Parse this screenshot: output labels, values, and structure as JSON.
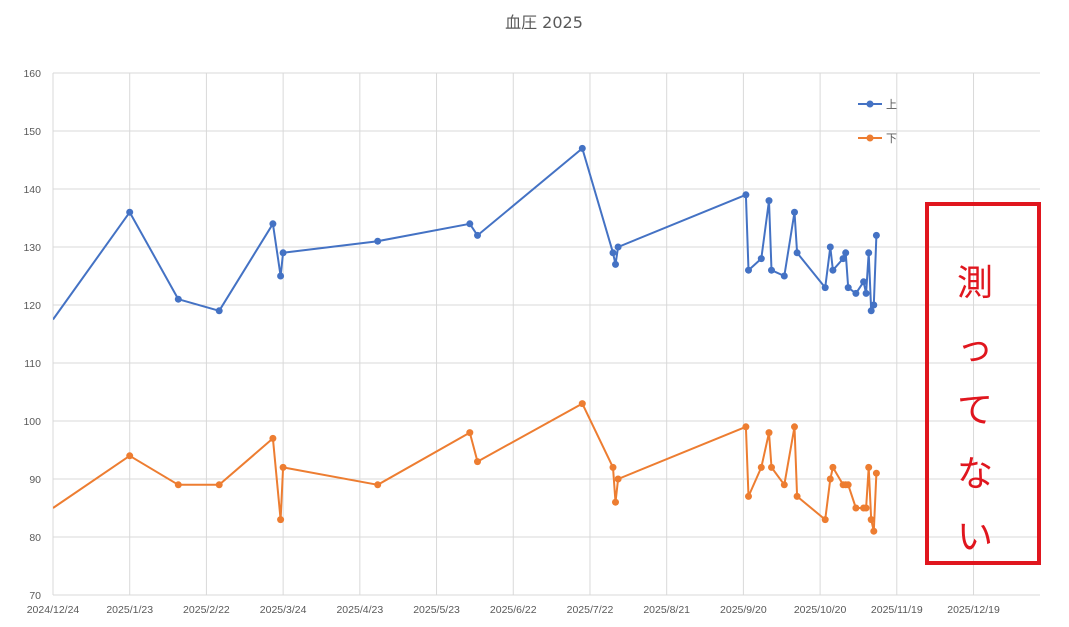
{
  "chart_data": {
    "type": "line",
    "title": "血圧 2025",
    "xlabel": "",
    "ylabel": "",
    "x_is_date": true,
    "xlim": [
      "2024-12-24",
      "2026-01-14"
    ],
    "ylim": [
      70,
      160
    ],
    "yticks": [
      70,
      80,
      90,
      100,
      110,
      120,
      130,
      140,
      150,
      160
    ],
    "xticks": [
      "2024-12-24",
      "2025-01-23",
      "2025-02-22",
      "2025-03-24",
      "2025-04-23",
      "2025-05-23",
      "2025-06-22",
      "2025-07-22",
      "2025-08-21",
      "2025-09-20",
      "2025-10-20",
      "2025-11-19",
      "2025-12-19"
    ],
    "xtick_labels": [
      "2024/12/24",
      "2025/1/23",
      "2025/2/22",
      "2025/3/24",
      "2025/4/23",
      "2025/5/23",
      "2025/6/22",
      "2025/7/22",
      "2025/8/21",
      "2025/9/20",
      "2025/10/20",
      "2025/11/19",
      "2025/12/19"
    ],
    "grid": true,
    "legend_position": "top-right",
    "x": [
      "2025-01-23",
      "2025-02-11",
      "2025-02-27",
      "2025-03-20",
      "2025-03-23",
      "2025-03-24",
      "2025-04-30",
      "2025-06-05",
      "2025-06-08",
      "2025-07-19",
      "2025-07-31",
      "2025-08-01",
      "2025-08-02",
      "2025-09-21",
      "2025-09-22",
      "2025-09-27",
      "2025-09-30",
      "2025-10-01",
      "2025-10-06",
      "2025-10-10",
      "2025-10-11",
      "2025-10-22",
      "2025-10-24",
      "2025-10-25",
      "2025-10-29",
      "2025-10-30",
      "2025-10-31",
      "2025-11-03",
      "2025-11-06",
      "2025-11-07",
      "2025-11-08",
      "2025-11-09",
      "2025-11-10",
      "2025-11-11"
    ],
    "series": [
      {
        "name": "上",
        "color": "#4472c4",
        "values": [
          136,
          121,
          119,
          134,
          125,
          129,
          131,
          134,
          132,
          147,
          129,
          127,
          130,
          139,
          126,
          128,
          138,
          126,
          125,
          136,
          129,
          123,
          130,
          126,
          128,
          129,
          123,
          122,
          124,
          122,
          129,
          119,
          120,
          132
        ]
      },
      {
        "name": "下",
        "color": "#ed7d31",
        "values": [
          94,
          89,
          89,
          97,
          83,
          92,
          89,
          98,
          93,
          103,
          92,
          86,
          90,
          99,
          87,
          92,
          98,
          92,
          89,
          99,
          87,
          83,
          90,
          92,
          89,
          89,
          89,
          85,
          85,
          85,
          92,
          83,
          81,
          91
        ]
      }
    ]
  },
  "annotation": {
    "label": "測ってない",
    "chars": [
      "測",
      "っ",
      "て",
      "な",
      "い"
    ],
    "border_color": "#e0161e",
    "text_color": "#e0161e"
  }
}
